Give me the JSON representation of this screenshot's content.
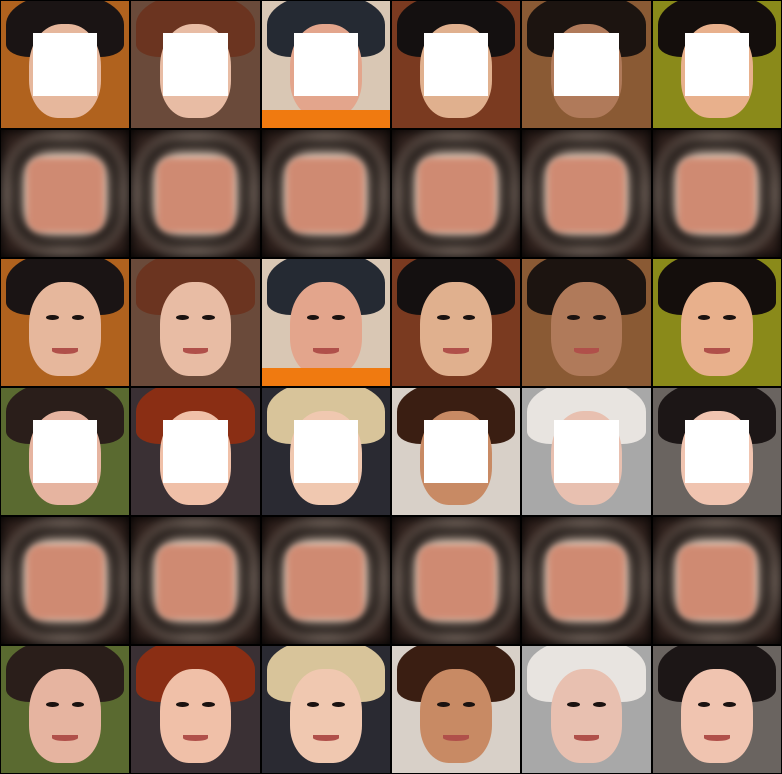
{
  "grid": {
    "columns": 6,
    "blocks": 2,
    "row_roles": [
      "masked-input",
      "prediction",
      "ground-truth"
    ]
  },
  "samples": [
    {
      "id": "s1",
      "bg": "#b0621e",
      "skin": "#e6b79c",
      "hair": "#1a1414"
    },
    {
      "id": "s2",
      "bg": "#6a4a3a",
      "skin": "#e8bca4",
      "hair": "#6b3420"
    },
    {
      "id": "s3",
      "bg": "#d9c7b4",
      "skin": "#e3a58c",
      "hair": "#252a33",
      "accent": "#f07a10"
    },
    {
      "id": "s4",
      "bg": "#7a3a20",
      "skin": "#e0b08e",
      "hair": "#141010"
    },
    {
      "id": "s5",
      "bg": "#8a5a34",
      "skin": "#b07a5a",
      "hair": "#1c1410"
    },
    {
      "id": "s6",
      "bg": "#8a8a1a",
      "skin": "#e8b08c",
      "hair": "#140e0c"
    },
    {
      "id": "s7",
      "bg": "#5a6a30",
      "skin": "#e6b4a0",
      "hair": "#2a1e1a"
    },
    {
      "id": "s8",
      "bg": "#3a3034",
      "skin": "#f0c0a8",
      "hair": "#8a2e14"
    },
    {
      "id": "s9",
      "bg": "#2a2a32",
      "skin": "#f0c8b0",
      "hair": "#d8c49a"
    },
    {
      "id": "s10",
      "bg": "#d8d0c8",
      "skin": "#c88a64",
      "hair": "#3a1e12"
    },
    {
      "id": "s11",
      "bg": "#a8a8a8",
      "skin": "#e8c0b0",
      "hair": "#e8e4e0"
    },
    {
      "id": "s12",
      "bg": "#6a6460",
      "skin": "#f0c4b0",
      "hair": "#1c1616"
    }
  ]
}
